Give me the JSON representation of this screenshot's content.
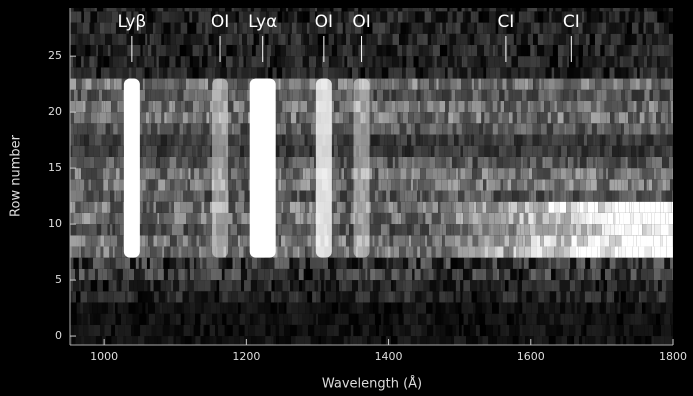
{
  "chart_data": {
    "type": "spectral-image",
    "x_label": "Wavelength (Å)",
    "y_label": "Row number",
    "xlim": [
      952,
      1800
    ],
    "ylim": [
      -0.8,
      29.3
    ],
    "xticks": [
      1000,
      1200,
      1400,
      1600,
      1800
    ],
    "yticks": [
      0,
      5,
      10,
      15,
      20,
      25
    ],
    "lines": [
      {
        "label": "Lyβ",
        "x": 1039
      },
      {
        "label": "OI",
        "x": 1163
      },
      {
        "label": "Lyα",
        "x": 1223
      },
      {
        "label": "OI",
        "x": 1309
      },
      {
        "label": "OI",
        "x": 1362
      },
      {
        "label": "CI",
        "x": 1565
      },
      {
        "label": "CI",
        "x": 1657
      }
    ]
  }
}
